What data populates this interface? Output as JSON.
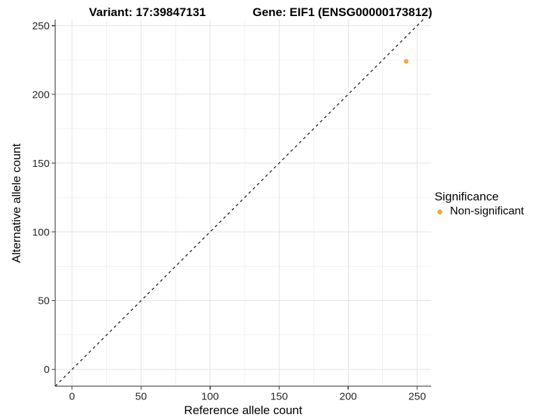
{
  "chart_data": {
    "type": "scatter",
    "title_left": "Variant: 17:39847131",
    "title_right": "Gene: EIF1 (ENSG00000173812)",
    "xlabel": "Reference allele count",
    "ylabel": "Alternative allele count",
    "x_ticks": [
      0,
      50,
      100,
      150,
      200,
      250
    ],
    "y_ticks": [
      0,
      50,
      100,
      150,
      200,
      250
    ],
    "x_minor_ticks": [
      25,
      75,
      125,
      175,
      225
    ],
    "y_minor_ticks": [
      25,
      75,
      125,
      175,
      225
    ],
    "xlim": [
      -12.2,
      260.1
    ],
    "ylim": [
      -12.2,
      254.4
    ],
    "grid": true,
    "legend_position": "right",
    "reference_line": {
      "type": "identity_y_equals_x",
      "style": "dashed",
      "color": "#1a1a1a"
    },
    "points": [
      {
        "x": 242,
        "y": 224,
        "series": "Non-significant",
        "color": "#F8A43C"
      }
    ],
    "legend": {
      "title": "Significance",
      "items": [
        {
          "label": "Non-significant",
          "color": "#F8A43C"
        }
      ]
    }
  },
  "colors": {
    "background": "#ffffff",
    "grid_major": "#E3E3E3",
    "grid_minor": "#F1F1F1",
    "axis_line": "#222222",
    "tick_mark": "#333333",
    "tick_label": "#262626",
    "point_orange": "#F8A43C"
  }
}
